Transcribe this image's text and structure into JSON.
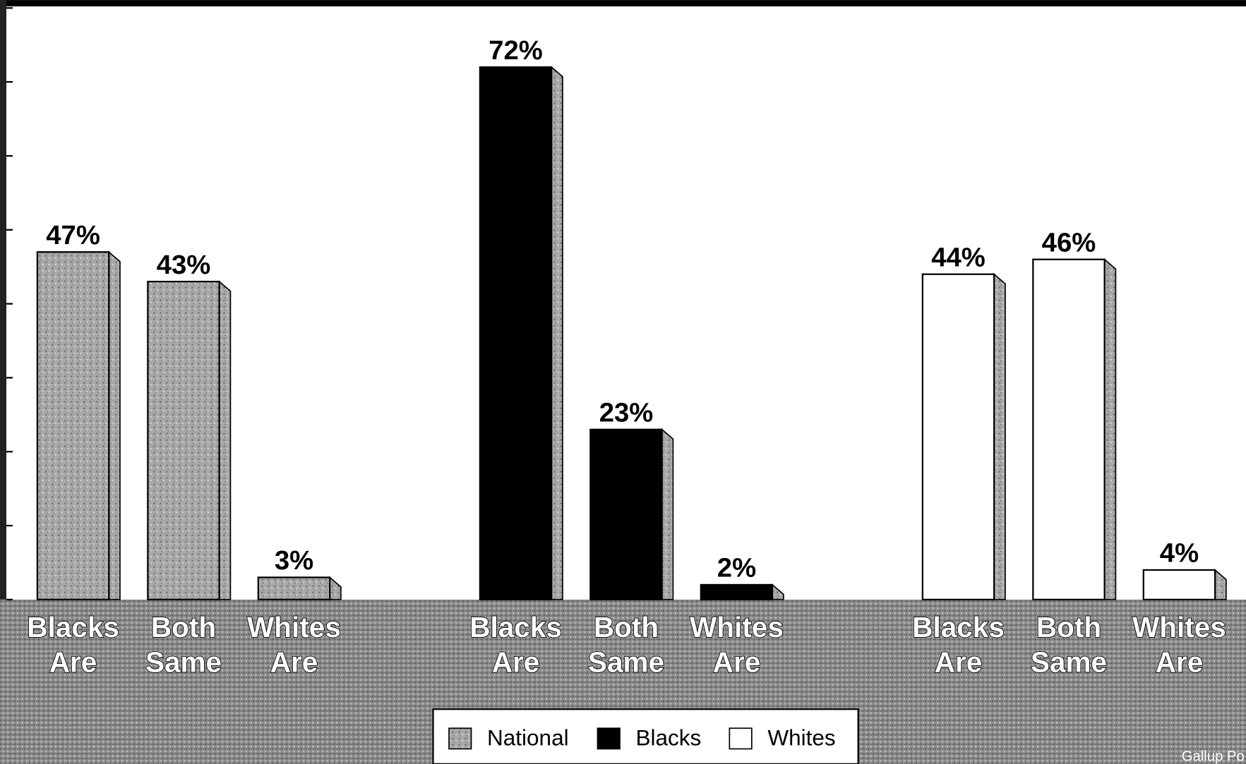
{
  "chart_data": {
    "type": "bar",
    "categories": [
      "Blacks Are",
      "Both Same",
      "Whites Are"
    ],
    "series": [
      {
        "name": "National",
        "color": "#9a9a9a",
        "values": [
          47,
          43,
          3
        ],
        "value_labels": [
          "47%",
          "43%",
          "3%"
        ]
      },
      {
        "name": "Blacks",
        "color": "#000000",
        "values": [
          72,
          23,
          2
        ],
        "value_labels": [
          "72%",
          "23%",
          "2%"
        ]
      },
      {
        "name": "Whites",
        "color": "#ffffff",
        "values": [
          44,
          46,
          4
        ],
        "value_labels": [
          "44%",
          "46%",
          "4%"
        ]
      }
    ],
    "ylim": [
      0,
      80
    ],
    "yticks": [
      0,
      10,
      20,
      30,
      40,
      50,
      60,
      70,
      80
    ],
    "source": "Gallup Po"
  }
}
